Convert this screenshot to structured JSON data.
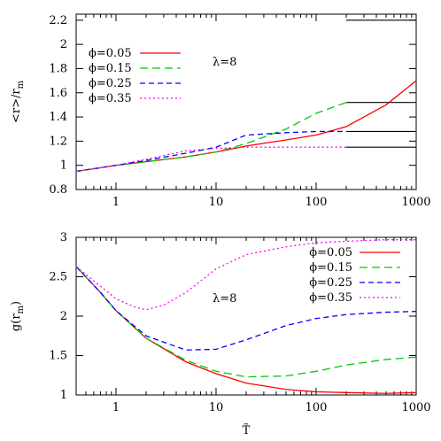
{
  "chart_data": [
    {
      "type": "line",
      "ylabel": "<r>/r_m",
      "xlabel": "",
      "xscale": "log",
      "xlim": [
        0.4,
        1000
      ],
      "ylim": [
        0.8,
        2.25
      ],
      "xticks": [
        1,
        10,
        100,
        1000
      ],
      "xtick_labels": [
        "1",
        "10",
        "100",
        "1000"
      ],
      "yticks": [
        0.8,
        1,
        1.2,
        1.4,
        1.6,
        1.8,
        2,
        2.2
      ],
      "ytick_labels": [
        "0.8",
        "1",
        "1.2",
        "1.4",
        "1.6",
        "1.8",
        "2",
        "2.2"
      ],
      "annotation": "λ=8",
      "legend_position": "top-left",
      "series": [
        {
          "name": "ϕ=0.05",
          "color": "#ff0000",
          "dash": "none",
          "x": [
            0.4,
            0.7,
            1,
            2,
            5,
            10,
            20,
            50,
            100,
            200,
            500,
            1000
          ],
          "y": [
            0.95,
            0.98,
            1.0,
            1.03,
            1.07,
            1.11,
            1.16,
            1.21,
            1.25,
            1.32,
            1.5,
            1.7
          ]
        },
        {
          "name": "ϕ=0.15",
          "color": "#00cc00",
          "dash": "9,5",
          "x": [
            0.4,
            0.7,
            1,
            2,
            5,
            10,
            20,
            50,
            100,
            200
          ],
          "y": [
            0.95,
            0.98,
            1.0,
            1.03,
            1.07,
            1.11,
            1.18,
            1.3,
            1.43,
            1.52
          ]
        },
        {
          "name": "ϕ=0.25",
          "color": "#0000ff",
          "dash": "6,4",
          "x": [
            0.4,
            0.7,
            1,
            2,
            5,
            10,
            20,
            50,
            100,
            200
          ],
          "y": [
            0.95,
            0.98,
            1.0,
            1.04,
            1.1,
            1.15,
            1.25,
            1.27,
            1.28,
            1.28
          ]
        },
        {
          "name": "ϕ=0.35",
          "color": "#ff00ff",
          "dash": "2,3",
          "x": [
            0.4,
            0.7,
            1,
            2,
            5,
            10,
            20,
            50,
            100,
            200
          ],
          "y": [
            0.95,
            0.98,
            1.0,
            1.05,
            1.12,
            1.14,
            1.15,
            1.15,
            1.15,
            1.15
          ]
        }
      ],
      "reference_lines": [
        {
          "y": 2.2,
          "x_from": 200,
          "x_to": 1000,
          "color": "#000000"
        },
        {
          "y": 1.52,
          "x_from": 200,
          "x_to": 1000,
          "color": "#000000"
        },
        {
          "y": 1.28,
          "x_from": 200,
          "x_to": 1000,
          "color": "#000000"
        },
        {
          "y": 1.15,
          "x_from": 200,
          "x_to": 1000,
          "color": "#000000"
        }
      ]
    },
    {
      "type": "line",
      "ylabel": "g(r_m)",
      "xlabel": "T̃",
      "xscale": "log",
      "xlim": [
        0.4,
        1000
      ],
      "ylim": [
        1,
        3
      ],
      "xticks": [
        1,
        10,
        100,
        1000
      ],
      "xtick_labels": [
        "1",
        "10",
        "100",
        "1000"
      ],
      "yticks": [
        1,
        1.5,
        2,
        2.5,
        3
      ],
      "ytick_labels": [
        "1",
        "1.5",
        "2",
        "2.5",
        "3"
      ],
      "annotation": "λ=8",
      "legend_position": "top-right",
      "series": [
        {
          "name": "ϕ=0.05",
          "color": "#ff0000",
          "dash": "none",
          "x": [
            0.4,
            0.7,
            1,
            2,
            5,
            10,
            20,
            50,
            100,
            200,
            500,
            1000
          ],
          "y": [
            2.63,
            2.3,
            2.07,
            1.72,
            1.42,
            1.27,
            1.15,
            1.07,
            1.04,
            1.03,
            1.02,
            1.03
          ]
        },
        {
          "name": "ϕ=0.15",
          "color": "#00cc00",
          "dash": "9,5",
          "x": [
            0.4,
            0.7,
            1,
            2,
            5,
            10,
            20,
            50,
            100,
            200,
            500,
            1000
          ],
          "y": [
            2.63,
            2.3,
            2.07,
            1.72,
            1.44,
            1.3,
            1.23,
            1.24,
            1.3,
            1.38,
            1.45,
            1.48
          ]
        },
        {
          "name": "ϕ=0.25",
          "color": "#0000ff",
          "dash": "6,4",
          "x": [
            0.4,
            0.7,
            1,
            2,
            5,
            10,
            20,
            50,
            100,
            200,
            500,
            1000
          ],
          "y": [
            2.63,
            2.3,
            2.07,
            1.75,
            1.57,
            1.58,
            1.7,
            1.88,
            1.97,
            2.02,
            2.05,
            2.06
          ]
        },
        {
          "name": "ϕ=0.35",
          "color": "#ff00ff",
          "dash": "2,3",
          "x": [
            0.4,
            0.7,
            1,
            1.5,
            2,
            3,
            5,
            10,
            20,
            50,
            100,
            200,
            500,
            1000
          ],
          "y": [
            2.63,
            2.38,
            2.22,
            2.12,
            2.08,
            2.14,
            2.3,
            2.6,
            2.78,
            2.88,
            2.93,
            2.95,
            2.97,
            2.97
          ]
        }
      ]
    }
  ]
}
